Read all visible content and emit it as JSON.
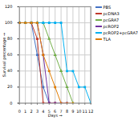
{
  "chart_data": {
    "type": "line",
    "xlabel": "Days",
    "ylabel": "Survival percentage",
    "xlim": [
      0,
      12
    ],
    "ylim": [
      0,
      120
    ],
    "xticks": [
      0,
      1,
      2,
      3,
      4,
      5,
      6,
      7,
      8,
      9,
      10,
      11,
      12
    ],
    "yticks": [
      0,
      20,
      40,
      60,
      80,
      100,
      120
    ],
    "grid": true,
    "legend": "right",
    "series": [
      {
        "name": "PBS",
        "color": "#4472C4",
        "marker": "square",
        "x": [
          0,
          1,
          2,
          3,
          4,
          5
        ],
        "values": [
          100,
          100,
          100,
          60,
          20,
          0
        ]
      },
      {
        "name": "pcDNA3",
        "color": "#C0392B",
        "marker": "square",
        "x": [
          0,
          1,
          2,
          3,
          4,
          5,
          6
        ],
        "values": [
          100,
          100,
          100,
          80,
          0,
          0,
          0
        ]
      },
      {
        "name": "pcGRA7",
        "color": "#70AD47",
        "marker": "triangle",
        "x": [
          0,
          1,
          2,
          3,
          4,
          5,
          6,
          7,
          8,
          9
        ],
        "values": [
          100,
          100,
          100,
          100,
          100,
          80,
          60,
          40,
          20,
          0
        ]
      },
      {
        "name": "pcROP2",
        "color": "#7030A0",
        "marker": "square",
        "x": [
          0,
          1,
          2,
          3,
          4,
          5,
          6,
          7,
          8
        ],
        "values": [
          100,
          100,
          100,
          100,
          60,
          0,
          0,
          0,
          0
        ]
      },
      {
        "name": "pcROP2+pcGRA7",
        "color": "#00B0F0",
        "marker": "square",
        "x": [
          0,
          1,
          2,
          3,
          4,
          5,
          6,
          7,
          8,
          9,
          10,
          11,
          12
        ],
        "values": [
          100,
          100,
          100,
          100,
          100,
          100,
          100,
          100,
          40,
          40,
          20,
          20,
          0
        ]
      },
      {
        "name": "TLA",
        "color": "#E07B00",
        "marker": "circle",
        "x": [
          0,
          1,
          2,
          3,
          4,
          5,
          6,
          7,
          8,
          9
        ],
        "values": [
          100,
          100,
          100,
          100,
          60,
          40,
          20,
          0,
          0,
          0
        ]
      }
    ]
  }
}
